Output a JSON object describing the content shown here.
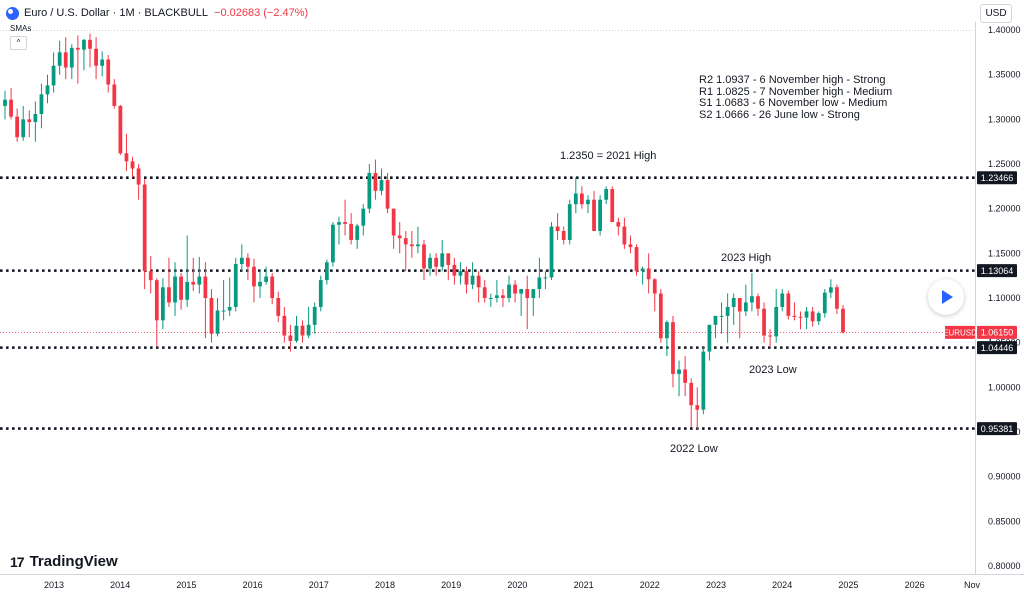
{
  "header": {
    "title": "Euro / U.S. Dollar · 1M · BLACKBULL",
    "change": "−0.02683 (−2.47%)",
    "indicator": "SMAs",
    "collapse_glyph": "^"
  },
  "currency_button": "USD",
  "logo_text": "TradingView",
  "icons": {
    "symbol": "eu-flag-icon",
    "collapse": "chevron-up-icon",
    "play": "play-icon",
    "logo": "tradingview-logo-icon"
  },
  "colors": {
    "up": "#089981",
    "down": "#f23645",
    "level": "#131722",
    "price_tag": "#f23645",
    "level_tag": "#131722"
  },
  "annotations": {
    "levels_box": [
      "R2 1.0937 - 6 November high - Strong",
      "R1 1.0825 - 7 November high - Medium",
      "S1 1.0683 - 6 November low - Medium",
      "S2 1.0666 - 26 June low - Strong"
    ],
    "high_2021": "1.2350 = 2021 High",
    "high_2023": "2023 High",
    "low_2023": "2023 Low",
    "low_2022": "2022 Low"
  },
  "chart_data": {
    "type": "candlestick",
    "symbol": "EURUSD",
    "interval": "1M",
    "y_axis": {
      "min": 0.8,
      "max": 1.4,
      "ticks": [
        "1.40000",
        "1.35000",
        "1.30000",
        "1.25000",
        "1.20000",
        "1.15000",
        "1.10000",
        "1.05000",
        "1.00000",
        "0.95000",
        "0.90000",
        "0.85000",
        "0.80000"
      ]
    },
    "x_axis": {
      "labels": [
        "2013",
        "2014",
        "2015",
        "2016",
        "2017",
        "2018",
        "2019",
        "2020",
        "2021",
        "2022",
        "2023",
        "2024",
        "2025",
        "2026",
        "Nov"
      ]
    },
    "horizontal_levels": [
      {
        "value": 1.23466,
        "label": "1.23466"
      },
      {
        "value": 1.13064,
        "label": "1.13064"
      },
      {
        "value": 1.04446,
        "label": "1.04446"
      },
      {
        "value": 0.95381,
        "label": "0.95381"
      }
    ],
    "last_price": {
      "symbol": "EURUSD",
      "value": 1.0615,
      "label": "1.06150"
    },
    "grid": false,
    "candles": [
      [
        1.315,
        1.332,
        1.3,
        1.322
      ],
      [
        1.322,
        1.335,
        1.3,
        1.303
      ],
      [
        1.303,
        1.312,
        1.275,
        1.28
      ],
      [
        1.28,
        1.315,
        1.276,
        1.3
      ],
      [
        1.3,
        1.31,
        1.28,
        1.297
      ],
      [
        1.297,
        1.32,
        1.275,
        1.306
      ],
      [
        1.306,
        1.34,
        1.29,
        1.328
      ],
      [
        1.328,
        1.35,
        1.318,
        1.338
      ],
      [
        1.338,
        1.375,
        1.33,
        1.36
      ],
      [
        1.36,
        1.388,
        1.35,
        1.375
      ],
      [
        1.375,
        1.392,
        1.345,
        1.358
      ],
      [
        1.358,
        1.384,
        1.345,
        1.38
      ],
      [
        1.38,
        1.394,
        1.34,
        1.378
      ],
      [
        1.378,
        1.39,
        1.355,
        1.389
      ],
      [
        1.389,
        1.396,
        1.358,
        1.379
      ],
      [
        1.379,
        1.392,
        1.345,
        1.36
      ],
      [
        1.36,
        1.376,
        1.348,
        1.367
      ],
      [
        1.367,
        1.372,
        1.33,
        1.339
      ],
      [
        1.339,
        1.345,
        1.312,
        1.315
      ],
      [
        1.315,
        1.316,
        1.26,
        1.262
      ],
      [
        1.262,
        1.284,
        1.242,
        1.253
      ],
      [
        1.253,
        1.258,
        1.235,
        1.245
      ],
      [
        1.245,
        1.25,
        1.21,
        1.227
      ],
      [
        1.227,
        1.233,
        1.11,
        1.13
      ],
      [
        1.13,
        1.147,
        1.105,
        1.12
      ],
      [
        1.12,
        1.122,
        1.045,
        1.075
      ],
      [
        1.075,
        1.122,
        1.065,
        1.112
      ],
      [
        1.112,
        1.145,
        1.09,
        1.095
      ],
      [
        1.095,
        1.14,
        1.08,
        1.124
      ],
      [
        1.124,
        1.128,
        1.087,
        1.098
      ],
      [
        1.098,
        1.17,
        1.09,
        1.118
      ],
      [
        1.118,
        1.145,
        1.108,
        1.115
      ],
      [
        1.115,
        1.146,
        1.105,
        1.124
      ],
      [
        1.124,
        1.14,
        1.055,
        1.1
      ],
      [
        1.1,
        1.11,
        1.05,
        1.06
      ],
      [
        1.06,
        1.1,
        1.057,
        1.086
      ],
      [
        1.086,
        1.12,
        1.075,
        1.086
      ],
      [
        1.086,
        1.123,
        1.08,
        1.09
      ],
      [
        1.09,
        1.145,
        1.085,
        1.138
      ],
      [
        1.138,
        1.16,
        1.13,
        1.145
      ],
      [
        1.145,
        1.15,
        1.12,
        1.135
      ],
      [
        1.135,
        1.144,
        1.095,
        1.113
      ],
      [
        1.113,
        1.13,
        1.1,
        1.118
      ],
      [
        1.118,
        1.135,
        1.115,
        1.124
      ],
      [
        1.124,
        1.128,
        1.093,
        1.1
      ],
      [
        1.1,
        1.107,
        1.073,
        1.08
      ],
      [
        1.08,
        1.09,
        1.05,
        1.058
      ],
      [
        1.058,
        1.07,
        1.04,
        1.052
      ],
      [
        1.052,
        1.08,
        1.05,
        1.069
      ],
      [
        1.069,
        1.075,
        1.05,
        1.058
      ],
      [
        1.058,
        1.09,
        1.055,
        1.07
      ],
      [
        1.07,
        1.095,
        1.06,
        1.09
      ],
      [
        1.09,
        1.125,
        1.085,
        1.12
      ],
      [
        1.12,
        1.143,
        1.115,
        1.14
      ],
      [
        1.14,
        1.185,
        1.135,
        1.182
      ],
      [
        1.182,
        1.191,
        1.16,
        1.185
      ],
      [
        1.185,
        1.21,
        1.17,
        1.183
      ],
      [
        1.183,
        1.195,
        1.16,
        1.165
      ],
      [
        1.165,
        1.183,
        1.155,
        1.181
      ],
      [
        1.181,
        1.205,
        1.17,
        1.2
      ],
      [
        1.2,
        1.25,
        1.195,
        1.24
      ],
      [
        1.24,
        1.255,
        1.21,
        1.22
      ],
      [
        1.22,
        1.245,
        1.215,
        1.232
      ],
      [
        1.232,
        1.24,
        1.195,
        1.2
      ],
      [
        1.2,
        1.2,
        1.155,
        1.17
      ],
      [
        1.17,
        1.185,
        1.15,
        1.167
      ],
      [
        1.167,
        1.175,
        1.13,
        1.16
      ],
      [
        1.16,
        1.175,
        1.145,
        1.158
      ],
      [
        1.158,
        1.18,
        1.15,
        1.16
      ],
      [
        1.16,
        1.165,
        1.12,
        1.133
      ],
      [
        1.133,
        1.15,
        1.125,
        1.145
      ],
      [
        1.145,
        1.15,
        1.125,
        1.135
      ],
      [
        1.135,
        1.165,
        1.13,
        1.15
      ],
      [
        1.15,
        1.15,
        1.12,
        1.137
      ],
      [
        1.137,
        1.145,
        1.115,
        1.125
      ],
      [
        1.125,
        1.14,
        1.115,
        1.13
      ],
      [
        1.13,
        1.135,
        1.105,
        1.115
      ],
      [
        1.115,
        1.14,
        1.11,
        1.125
      ],
      [
        1.125,
        1.13,
        1.095,
        1.112
      ],
      [
        1.112,
        1.12,
        1.095,
        1.1
      ],
      [
        1.1,
        1.105,
        1.09,
        1.1
      ],
      [
        1.1,
        1.12,
        1.095,
        1.103
      ],
      [
        1.103,
        1.11,
        1.09,
        1.1
      ],
      [
        1.1,
        1.125,
        1.095,
        1.115
      ],
      [
        1.115,
        1.12,
        1.095,
        1.105
      ],
      [
        1.105,
        1.11,
        1.08,
        1.11
      ],
      [
        1.11,
        1.125,
        1.065,
        1.1
      ],
      [
        1.1,
        1.11,
        1.08,
        1.11
      ],
      [
        1.11,
        1.145,
        1.1,
        1.123
      ],
      [
        1.123,
        1.13,
        1.11,
        1.123
      ],
      [
        1.123,
        1.185,
        1.12,
        1.18
      ],
      [
        1.18,
        1.195,
        1.165,
        1.175
      ],
      [
        1.175,
        1.18,
        1.16,
        1.165
      ],
      [
        1.165,
        1.21,
        1.16,
        1.205
      ],
      [
        1.205,
        1.235,
        1.195,
        1.217
      ],
      [
        1.217,
        1.225,
        1.2,
        1.205
      ],
      [
        1.205,
        1.215,
        1.195,
        1.21
      ],
      [
        1.21,
        1.22,
        1.175,
        1.175
      ],
      [
        1.175,
        1.215,
        1.17,
        1.21
      ],
      [
        1.21,
        1.225,
        1.205,
        1.222
      ],
      [
        1.222,
        1.225,
        1.185,
        1.185
      ],
      [
        1.185,
        1.19,
        1.17,
        1.18
      ],
      [
        1.18,
        1.19,
        1.155,
        1.16
      ],
      [
        1.16,
        1.17,
        1.15,
        1.157
      ],
      [
        1.157,
        1.16,
        1.125,
        1.13
      ],
      [
        1.13,
        1.135,
        1.115,
        1.133
      ],
      [
        1.133,
        1.15,
        1.105,
        1.121
      ],
      [
        1.121,
        1.122,
        1.085,
        1.105
      ],
      [
        1.105,
        1.11,
        1.05,
        1.055
      ],
      [
        1.055,
        1.075,
        1.035,
        1.073
      ],
      [
        1.073,
        1.08,
        1.0,
        1.015
      ],
      [
        1.015,
        1.03,
        0.99,
        1.02
      ],
      [
        1.02,
        1.035,
        0.99,
        1.005
      ],
      [
        1.005,
        1.01,
        0.955,
        0.98
      ],
      [
        0.98,
        1.0,
        0.953,
        0.975
      ],
      [
        0.975,
        1.045,
        0.97,
        1.04
      ],
      [
        1.04,
        1.065,
        1.03,
        1.07
      ],
      [
        1.07,
        1.08,
        1.055,
        1.08
      ],
      [
        1.08,
        1.095,
        1.06,
        1.08
      ],
      [
        1.08,
        1.105,
        1.05,
        1.09
      ],
      [
        1.09,
        1.105,
        1.07,
        1.1
      ],
      [
        1.1,
        1.095,
        1.055,
        1.085
      ],
      [
        1.085,
        1.115,
        1.08,
        1.095
      ],
      [
        1.095,
        1.128,
        1.085,
        1.102
      ],
      [
        1.102,
        1.105,
        1.08,
        1.088
      ],
      [
        1.088,
        1.095,
        1.05,
        1.058
      ],
      [
        1.058,
        1.065,
        1.045,
        1.057
      ],
      [
        1.057,
        1.11,
        1.05,
        1.09
      ],
      [
        1.09,
        1.11,
        1.085,
        1.105
      ],
      [
        1.105,
        1.108,
        1.076,
        1.08
      ],
      [
        1.08,
        1.095,
        1.075,
        1.079
      ],
      [
        1.079,
        1.085,
        1.065,
        1.078
      ],
      [
        1.078,
        1.09,
        1.065,
        1.085
      ],
      [
        1.085,
        1.09,
        1.068,
        1.074
      ],
      [
        1.074,
        1.085,
        1.07,
        1.083
      ],
      [
        1.083,
        1.11,
        1.078,
        1.106
      ],
      [
        1.106,
        1.121,
        1.1,
        1.112
      ],
      [
        1.112,
        1.115,
        1.082,
        1.088
      ],
      [
        1.088,
        1.092,
        1.06,
        1.0615
      ]
    ]
  }
}
